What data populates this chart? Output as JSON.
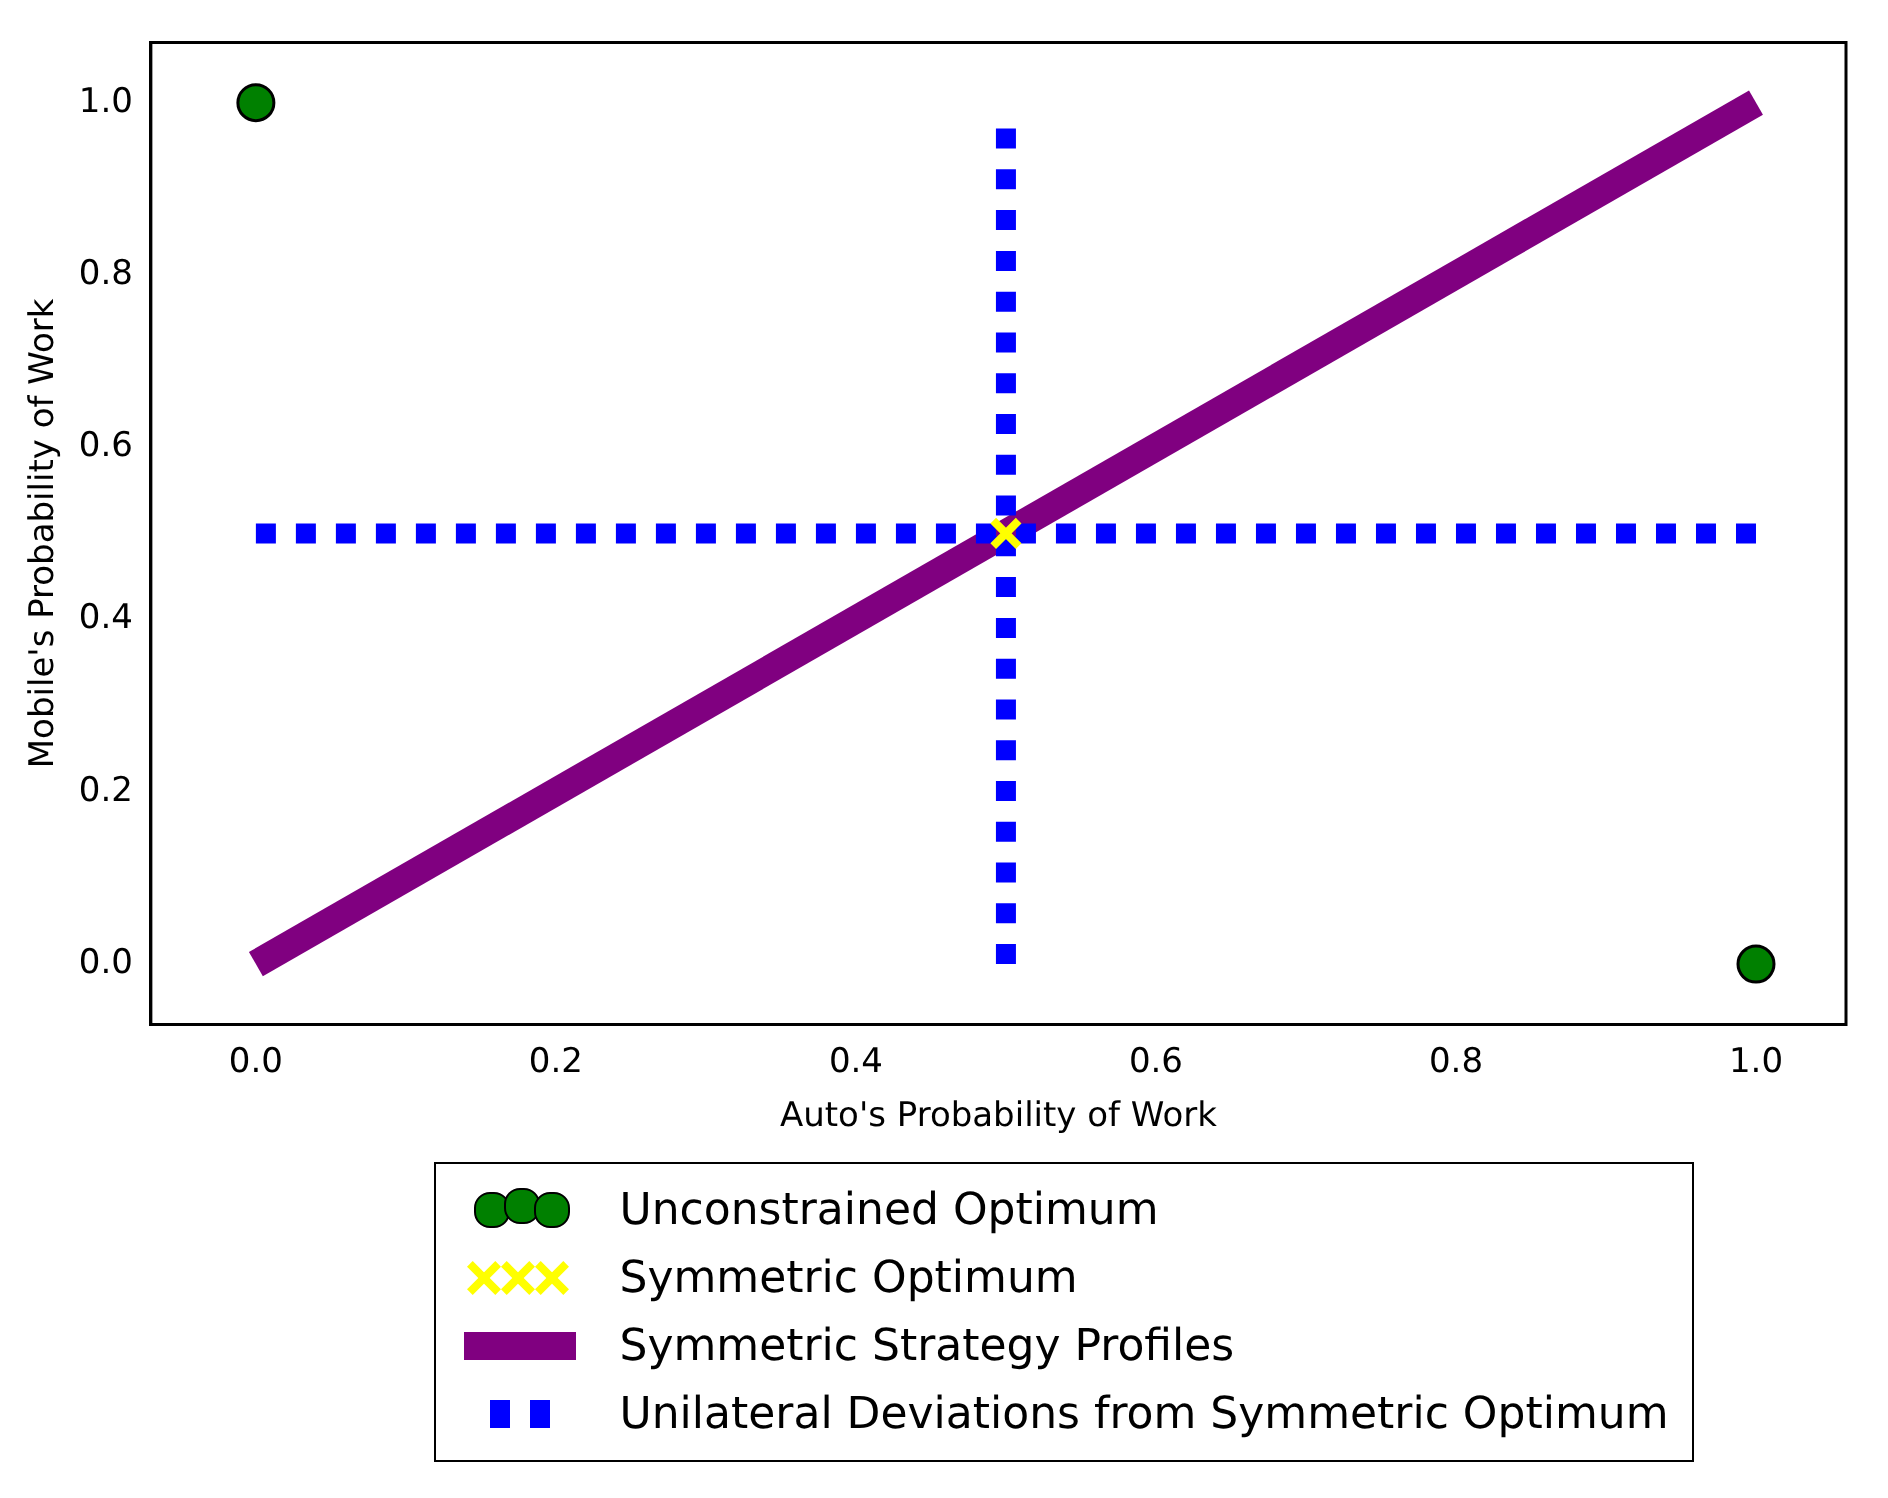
{
  "chart_data": {
    "type": "line",
    "xlabel": "Auto's Probability of Work",
    "ylabel": "Mobile's Probability of Work",
    "xlim": [
      -0.07,
      1.06
    ],
    "ylim": [
      -0.07,
      1.07
    ],
    "xticks": [
      {
        "value": 0,
        "label": "0.0"
      },
      0.2,
      0.4,
      0.6,
      0.8,
      {
        "value": 1,
        "label": "1.0"
      }
    ],
    "yticks": [
      {
        "value": 0,
        "label": "0.0"
      },
      0.2,
      0.4,
      0.6,
      0.8,
      {
        "value": 1,
        "label": "1.0"
      }
    ],
    "grid": false,
    "legend": "bottom",
    "series": [
      {
        "name": "Symmetric Strategy Profiles",
        "color": "#800080",
        "x": [
          0,
          1
        ],
        "values": [
          0,
          1
        ],
        "line_style": "solid",
        "marker": "none"
      },
      {
        "name": "Unilateral Deviations from Symmetric Optimum",
        "color": "#0000ff",
        "x": [
          0,
          1
        ],
        "values": [
          0.5,
          0.5
        ],
        "line_style": "dashed",
        "marker": "none"
      },
      {
        "color": "#0000ff",
        "x": [
          0.5,
          0.5
        ],
        "values": [
          0,
          0.97
        ],
        "line_style": "dashed",
        "marker": "none"
      },
      {
        "name": "Unconstrained Optimum",
        "type": "scatter",
        "color": "#008000",
        "x": [
          0,
          1
        ],
        "values": [
          1,
          0
        ],
        "marker": "circle"
      },
      {
        "name": "Symmetric Optimum",
        "type": "scatter",
        "color": "#ffff00",
        "x": [
          0.5
        ],
        "values": [
          0.5
        ],
        "marker": "cross"
      }
    ]
  }
}
